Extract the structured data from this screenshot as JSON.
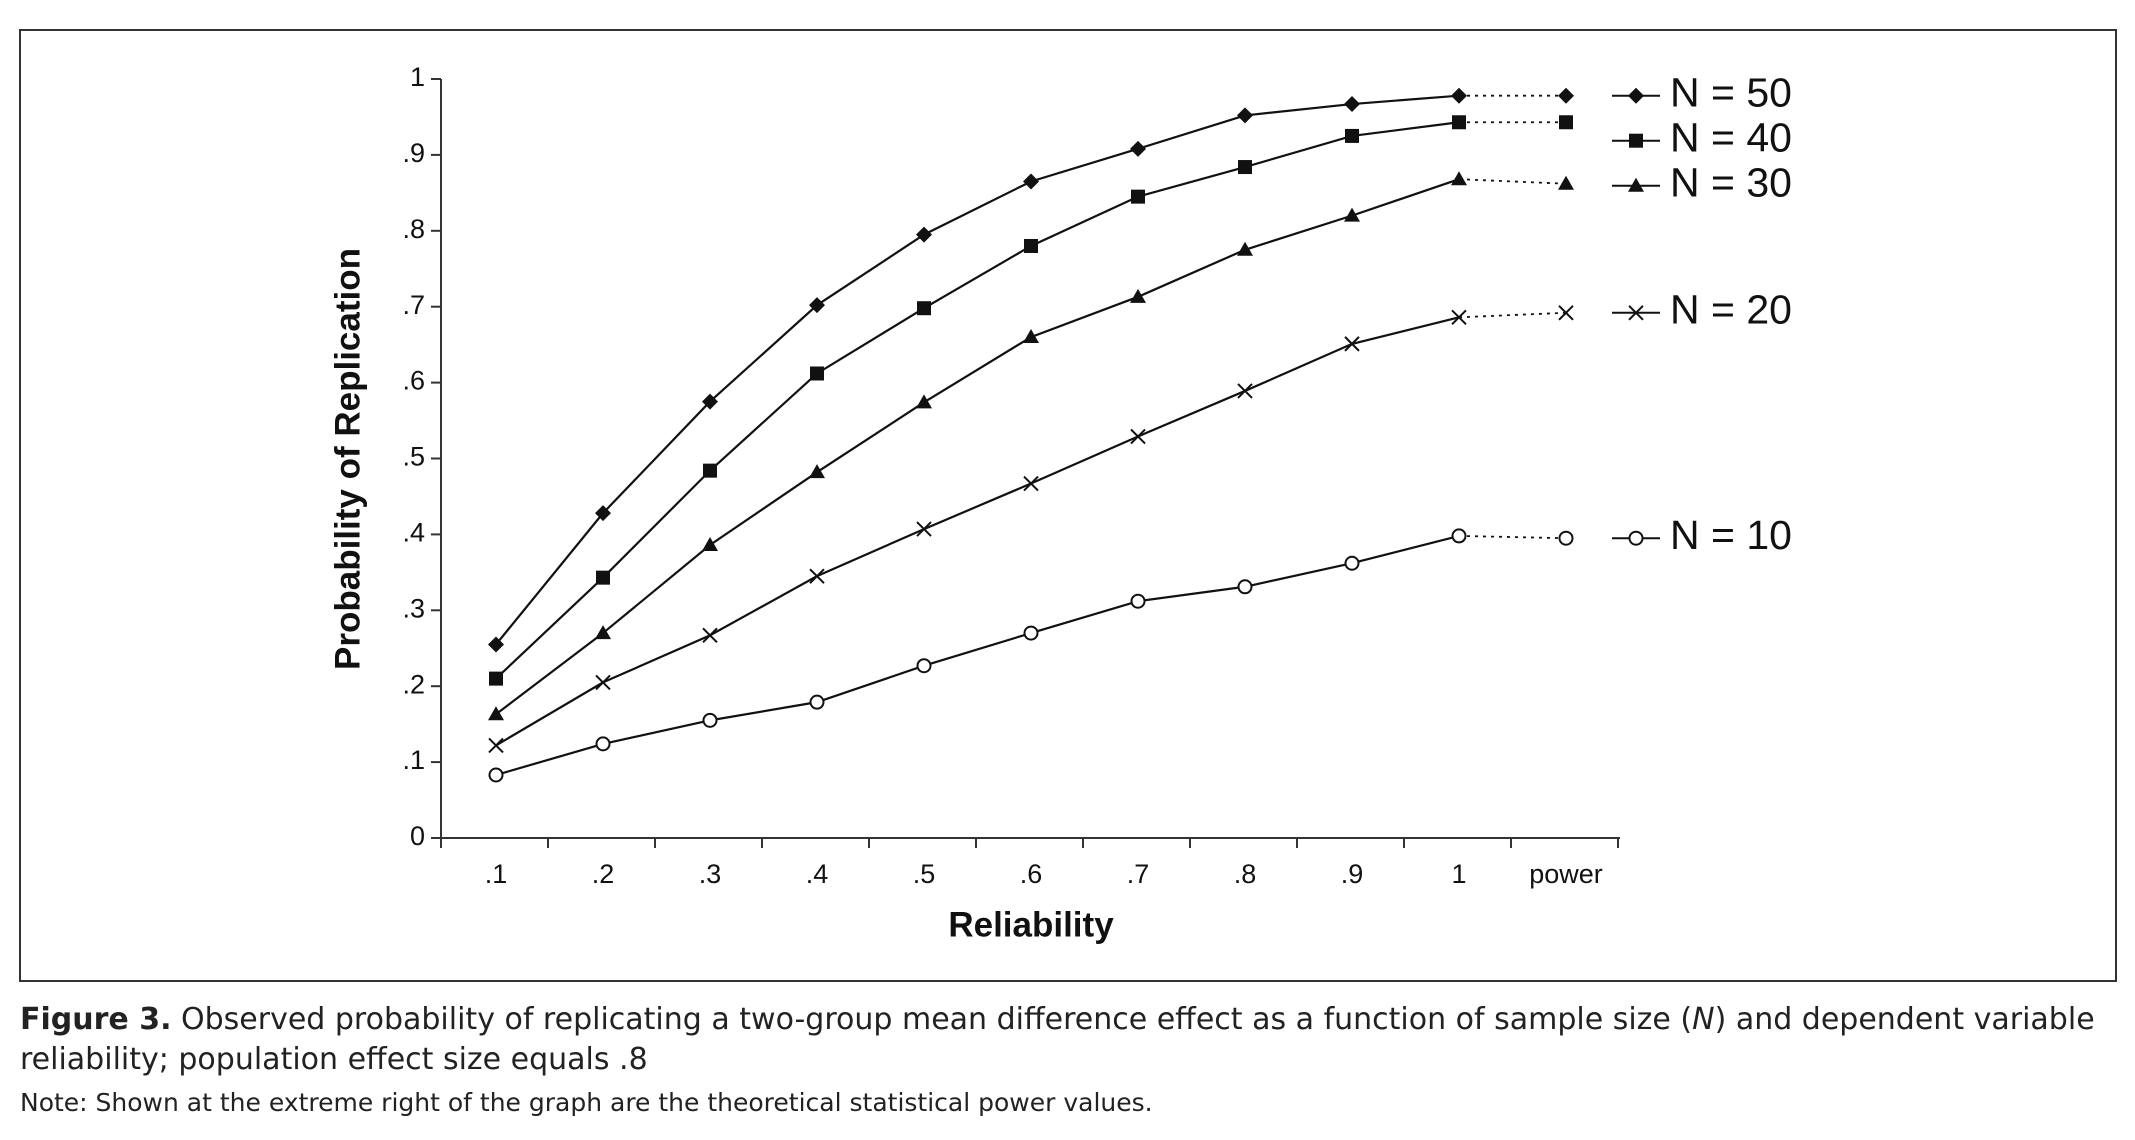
{
  "chart_data": {
    "type": "line",
    "xlabel": "Reliability",
    "ylabel": "Probability of Replication",
    "categories": [
      ".1",
      ".2",
      ".3",
      ".4",
      ".5",
      ".6",
      ".7",
      ".8",
      ".9",
      "1",
      "power"
    ],
    "ylim": [
      0,
      1
    ],
    "yticks": [
      0,
      {
        "value": 0.1,
        "label": ".1"
      },
      {
        "value": 0.2,
        "label": ".2"
      },
      {
        "value": 0.3,
        "label": ".3"
      },
      {
        "value": 0.4,
        "label": ".4"
      },
      {
        "value": 0.5,
        "label": ".5"
      },
      {
        "value": 0.6,
        "label": ".6"
      },
      {
        "value": 0.7,
        "label": ".7"
      },
      {
        "value": 0.8,
        "label": ".8"
      },
      {
        "value": 0.9,
        "label": ".9"
      },
      1
    ],
    "legend": "right",
    "series": [
      {
        "name": "N = 50",
        "color": "#111111",
        "marker": "diamond",
        "values": [
          0.255,
          0.428,
          0.575,
          0.702,
          0.795,
          0.865,
          0.908,
          0.952,
          0.967,
          0.978,
          0.978
        ]
      },
      {
        "name": "N = 40",
        "color": "#111111",
        "marker": "square",
        "values": [
          0.21,
          0.343,
          0.484,
          0.612,
          0.698,
          0.78,
          0.845,
          0.884,
          0.925,
          0.943,
          0.943
        ]
      },
      {
        "name": "N = 30",
        "color": "#111111",
        "marker": "triangle",
        "values": [
          0.163,
          0.27,
          0.386,
          0.482,
          0.574,
          0.66,
          0.713,
          0.775,
          0.82,
          0.868,
          0.862
        ]
      },
      {
        "name": "N = 20",
        "color": "#111111",
        "marker": "x",
        "values": [
          0.122,
          0.205,
          0.267,
          0.345,
          0.407,
          0.467,
          0.529,
          0.589,
          0.651,
          0.686,
          0.692
        ]
      },
      {
        "name": "N = 10",
        "color": "#111111",
        "marker": "circle",
        "values": [
          0.083,
          0.124,
          0.155,
          0.179,
          0.227,
          0.27,
          0.312,
          0.331,
          0.362,
          0.398,
          0.395
        ]
      }
    ]
  },
  "caption": {
    "label": "Figure 3.",
    "parts": [
      "Observed probability of replicating a two-group mean difference effect as a function of sample size (",
      "N",
      ") and dependent variable reliability; population effect size equals .8"
    ],
    "note": "Note: Shown at the extreme right of the graph are the theoretical statistical power values."
  }
}
